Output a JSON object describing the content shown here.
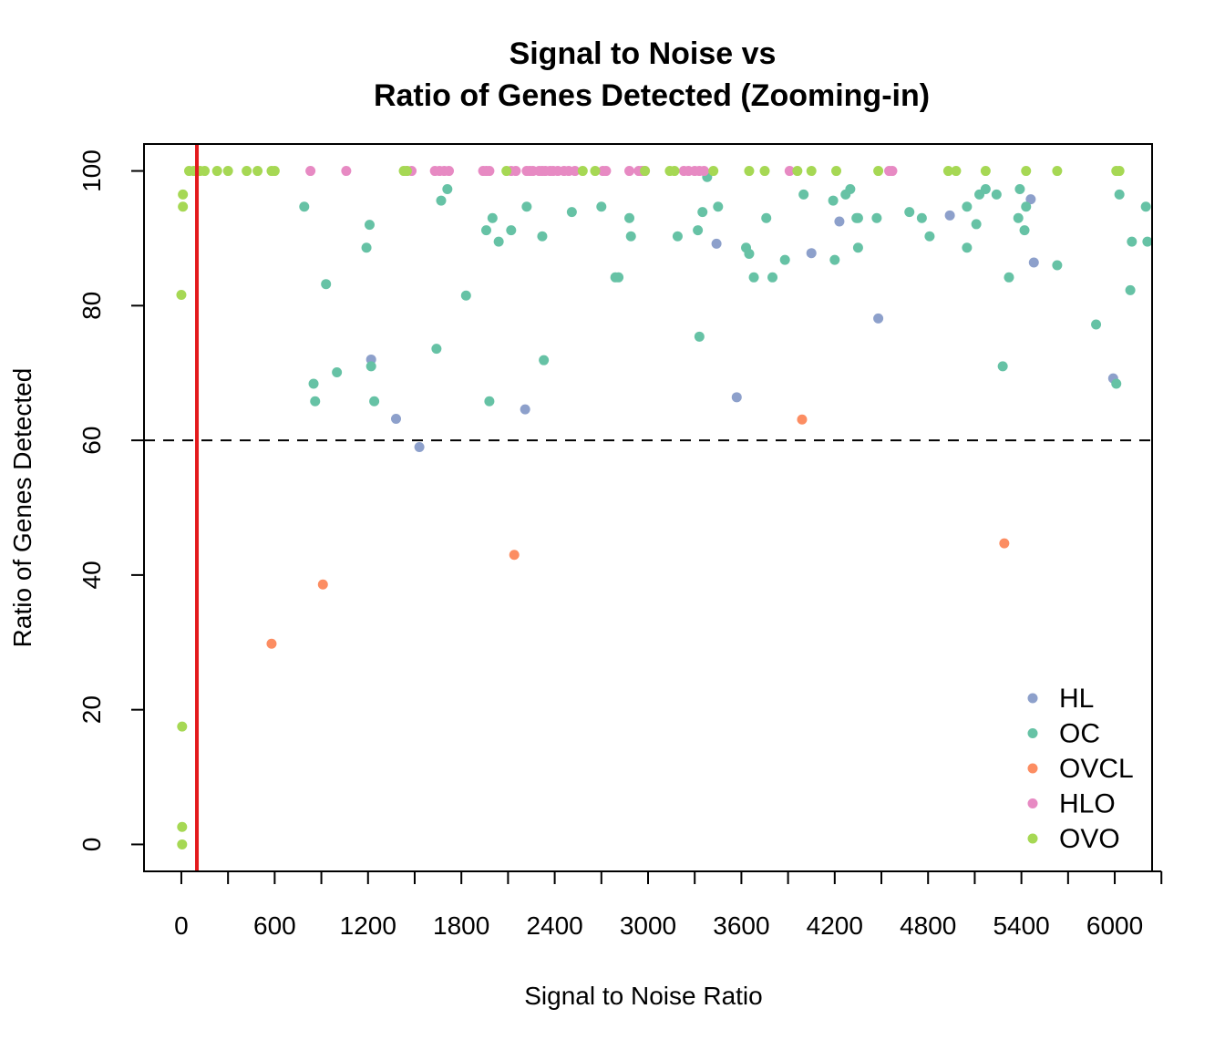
{
  "chart_data": {
    "type": "scatter",
    "title": [
      "Signal to Noise vs",
      "Ratio of Genes Detected (Zooming-in)"
    ],
    "xlabel": "Signal to Noise Ratio",
    "ylabel": "Ratio of Genes Detected",
    "xlim": [
      -240,
      6240
    ],
    "ylim": [
      -4,
      104
    ],
    "x_ticks": [
      0,
      300,
      600,
      900,
      1200,
      1500,
      1800,
      2100,
      2400,
      2700,
      3000,
      3300,
      3600,
      3900,
      4200,
      4500,
      4800,
      5100,
      5400,
      5700,
      6000,
      6300
    ],
    "x_tick_labels": [
      {
        "value": 0,
        "label": "0"
      },
      {
        "value": 600,
        "label": "600"
      },
      {
        "value": 1200,
        "label": "1200"
      },
      {
        "value": 1800,
        "label": "1800"
      },
      {
        "value": 2400,
        "label": "2400"
      },
      {
        "value": 3000,
        "label": "3000"
      },
      {
        "value": 3600,
        "label": "3600"
      },
      {
        "value": 4200,
        "label": "4200"
      },
      {
        "value": 4800,
        "label": "4800"
      },
      {
        "value": 5400,
        "label": "5400"
      },
      {
        "value": 6000,
        "label": "6000"
      }
    ],
    "y_ticks": [
      {
        "value": 0,
        "label": "0"
      },
      {
        "value": 20,
        "label": "20"
      },
      {
        "value": 40,
        "label": "40"
      },
      {
        "value": 60,
        "label": "60"
      },
      {
        "value": 80,
        "label": "80"
      },
      {
        "value": 100,
        "label": "100"
      }
    ],
    "vline": {
      "x": 100,
      "color": "#e31a1c"
    },
    "hline": {
      "y": 60,
      "style": "dashed",
      "color": "#000000"
    },
    "legend_position": "bottom-right",
    "series": [
      {
        "name": "HL",
        "color": "#8da0cb",
        "points": [
          [
            1220,
            72
          ],
          [
            1380,
            63.2
          ],
          [
            1530,
            59
          ],
          [
            2210,
            64.6
          ],
          [
            3440,
            89.2
          ],
          [
            3570,
            66.4
          ],
          [
            4050,
            87.8
          ],
          [
            4230,
            92.5
          ],
          [
            4480,
            78.1
          ],
          [
            4940,
            93.4
          ],
          [
            5460,
            95.8
          ],
          [
            5480,
            86.4
          ],
          [
            5990,
            69.2
          ]
        ]
      },
      {
        "name": "OC",
        "color": "#66c2a5",
        "points": [
          [
            790,
            94.7
          ],
          [
            850,
            68.4
          ],
          [
            860,
            65.8
          ],
          [
            930,
            83.2
          ],
          [
            1000,
            70.1
          ],
          [
            1190,
            88.6
          ],
          [
            1210,
            92
          ],
          [
            1220,
            71
          ],
          [
            1240,
            65.8
          ],
          [
            1640,
            73.6
          ],
          [
            1670,
            95.6
          ],
          [
            1710,
            97.3
          ],
          [
            1830,
            81.5
          ],
          [
            1960,
            91.2
          ],
          [
            1980,
            65.8
          ],
          [
            2000,
            93
          ],
          [
            2040,
            89.5
          ],
          [
            2120,
            91.2
          ],
          [
            2220,
            94.7
          ],
          [
            2320,
            90.3
          ],
          [
            2330,
            71.9
          ],
          [
            2510,
            93.9
          ],
          [
            2700,
            94.7
          ],
          [
            2790,
            84.2
          ],
          [
            2810,
            84.2
          ],
          [
            2880,
            93
          ],
          [
            2890,
            90.3
          ],
          [
            3190,
            90.3
          ],
          [
            3320,
            91.2
          ],
          [
            3330,
            75.4
          ],
          [
            3350,
            93.9
          ],
          [
            3380,
            99.1
          ],
          [
            3450,
            94.7
          ],
          [
            3630,
            88.6
          ],
          [
            3650,
            87.7
          ],
          [
            3680,
            84.2
          ],
          [
            3760,
            93
          ],
          [
            3800,
            84.2
          ],
          [
            3880,
            86.8
          ],
          [
            4000,
            96.5
          ],
          [
            4190,
            95.6
          ],
          [
            4200,
            86.8
          ],
          [
            4270,
            96.5
          ],
          [
            4300,
            97.3
          ],
          [
            4340,
            93
          ],
          [
            4350,
            93
          ],
          [
            4350,
            88.6
          ],
          [
            4470,
            93
          ],
          [
            4680,
            93.9
          ],
          [
            4760,
            93
          ],
          [
            4810,
            90.3
          ],
          [
            5050,
            94.7
          ],
          [
            5050,
            88.6
          ],
          [
            5110,
            92.1
          ],
          [
            5130,
            96.5
          ],
          [
            5170,
            97.3
          ],
          [
            5240,
            96.5
          ],
          [
            5280,
            71
          ],
          [
            5320,
            84.2
          ],
          [
            5380,
            93
          ],
          [
            5390,
            97.3
          ],
          [
            5420,
            91.2
          ],
          [
            5430,
            94.7
          ],
          [
            5630,
            86
          ],
          [
            5880,
            77.2
          ],
          [
            6010,
            68.4
          ],
          [
            6030,
            96.5
          ],
          [
            6100,
            82.3
          ],
          [
            6110,
            89.5
          ],
          [
            6200,
            94.7
          ],
          [
            6210,
            89.5
          ]
        ]
      },
      {
        "name": "OVCL",
        "color": "#fc8d62",
        "points": [
          [
            580,
            29.8
          ],
          [
            910,
            38.6
          ],
          [
            2140,
            43
          ],
          [
            3990,
            63.1
          ],
          [
            5290,
            44.7
          ]
        ]
      },
      {
        "name": "HLO",
        "color": "#e78ac3",
        "points": [
          [
            830,
            100
          ],
          [
            1060,
            100
          ],
          [
            1450,
            100
          ],
          [
            1480,
            100
          ],
          [
            1630,
            100
          ],
          [
            1660,
            100
          ],
          [
            1690,
            100
          ],
          [
            1720,
            100
          ],
          [
            1940,
            100
          ],
          [
            1960,
            100
          ],
          [
            1980,
            100
          ],
          [
            2120,
            100
          ],
          [
            2150,
            100
          ],
          [
            2220,
            100
          ],
          [
            2240,
            100
          ],
          [
            2260,
            100
          ],
          [
            2300,
            100
          ],
          [
            2320,
            100
          ],
          [
            2340,
            100
          ],
          [
            2370,
            100
          ],
          [
            2390,
            100
          ],
          [
            2420,
            100
          ],
          [
            2460,
            100
          ],
          [
            2490,
            100
          ],
          [
            2530,
            100
          ],
          [
            2710,
            100
          ],
          [
            2730,
            100
          ],
          [
            2880,
            100
          ],
          [
            2940,
            100
          ],
          [
            2960,
            100
          ],
          [
            2980,
            100
          ],
          [
            3230,
            100
          ],
          [
            3260,
            100
          ],
          [
            3300,
            100
          ],
          [
            3330,
            100
          ],
          [
            3360,
            100
          ],
          [
            3910,
            100
          ],
          [
            4550,
            100
          ],
          [
            4570,
            100
          ]
        ]
      },
      {
        "name": "OVO",
        "color": "#a6d854",
        "points": [
          [
            0,
            81.6
          ],
          [
            5,
            17.5
          ],
          [
            5,
            2.6
          ],
          [
            5,
            0
          ],
          [
            10,
            96.5
          ],
          [
            10,
            94.7
          ],
          [
            50,
            100
          ],
          [
            80,
            100
          ],
          [
            120,
            100
          ],
          [
            150,
            100
          ],
          [
            230,
            100
          ],
          [
            300,
            100
          ],
          [
            420,
            100
          ],
          [
            490,
            100
          ],
          [
            580,
            100
          ],
          [
            600,
            100
          ],
          [
            1430,
            100
          ],
          [
            1450,
            100
          ],
          [
            2090,
            100
          ],
          [
            2580,
            100
          ],
          [
            2660,
            100
          ],
          [
            2980,
            100
          ],
          [
            3140,
            100
          ],
          [
            3170,
            100
          ],
          [
            3420,
            100
          ],
          [
            3650,
            100
          ],
          [
            3750,
            100
          ],
          [
            3960,
            100
          ],
          [
            4050,
            100
          ],
          [
            4210,
            100
          ],
          [
            4480,
            100
          ],
          [
            4930,
            100
          ],
          [
            4980,
            100
          ],
          [
            5170,
            100
          ],
          [
            5430,
            100
          ],
          [
            5630,
            100
          ],
          [
            6010,
            100
          ],
          [
            6030,
            100
          ]
        ]
      }
    ]
  }
}
